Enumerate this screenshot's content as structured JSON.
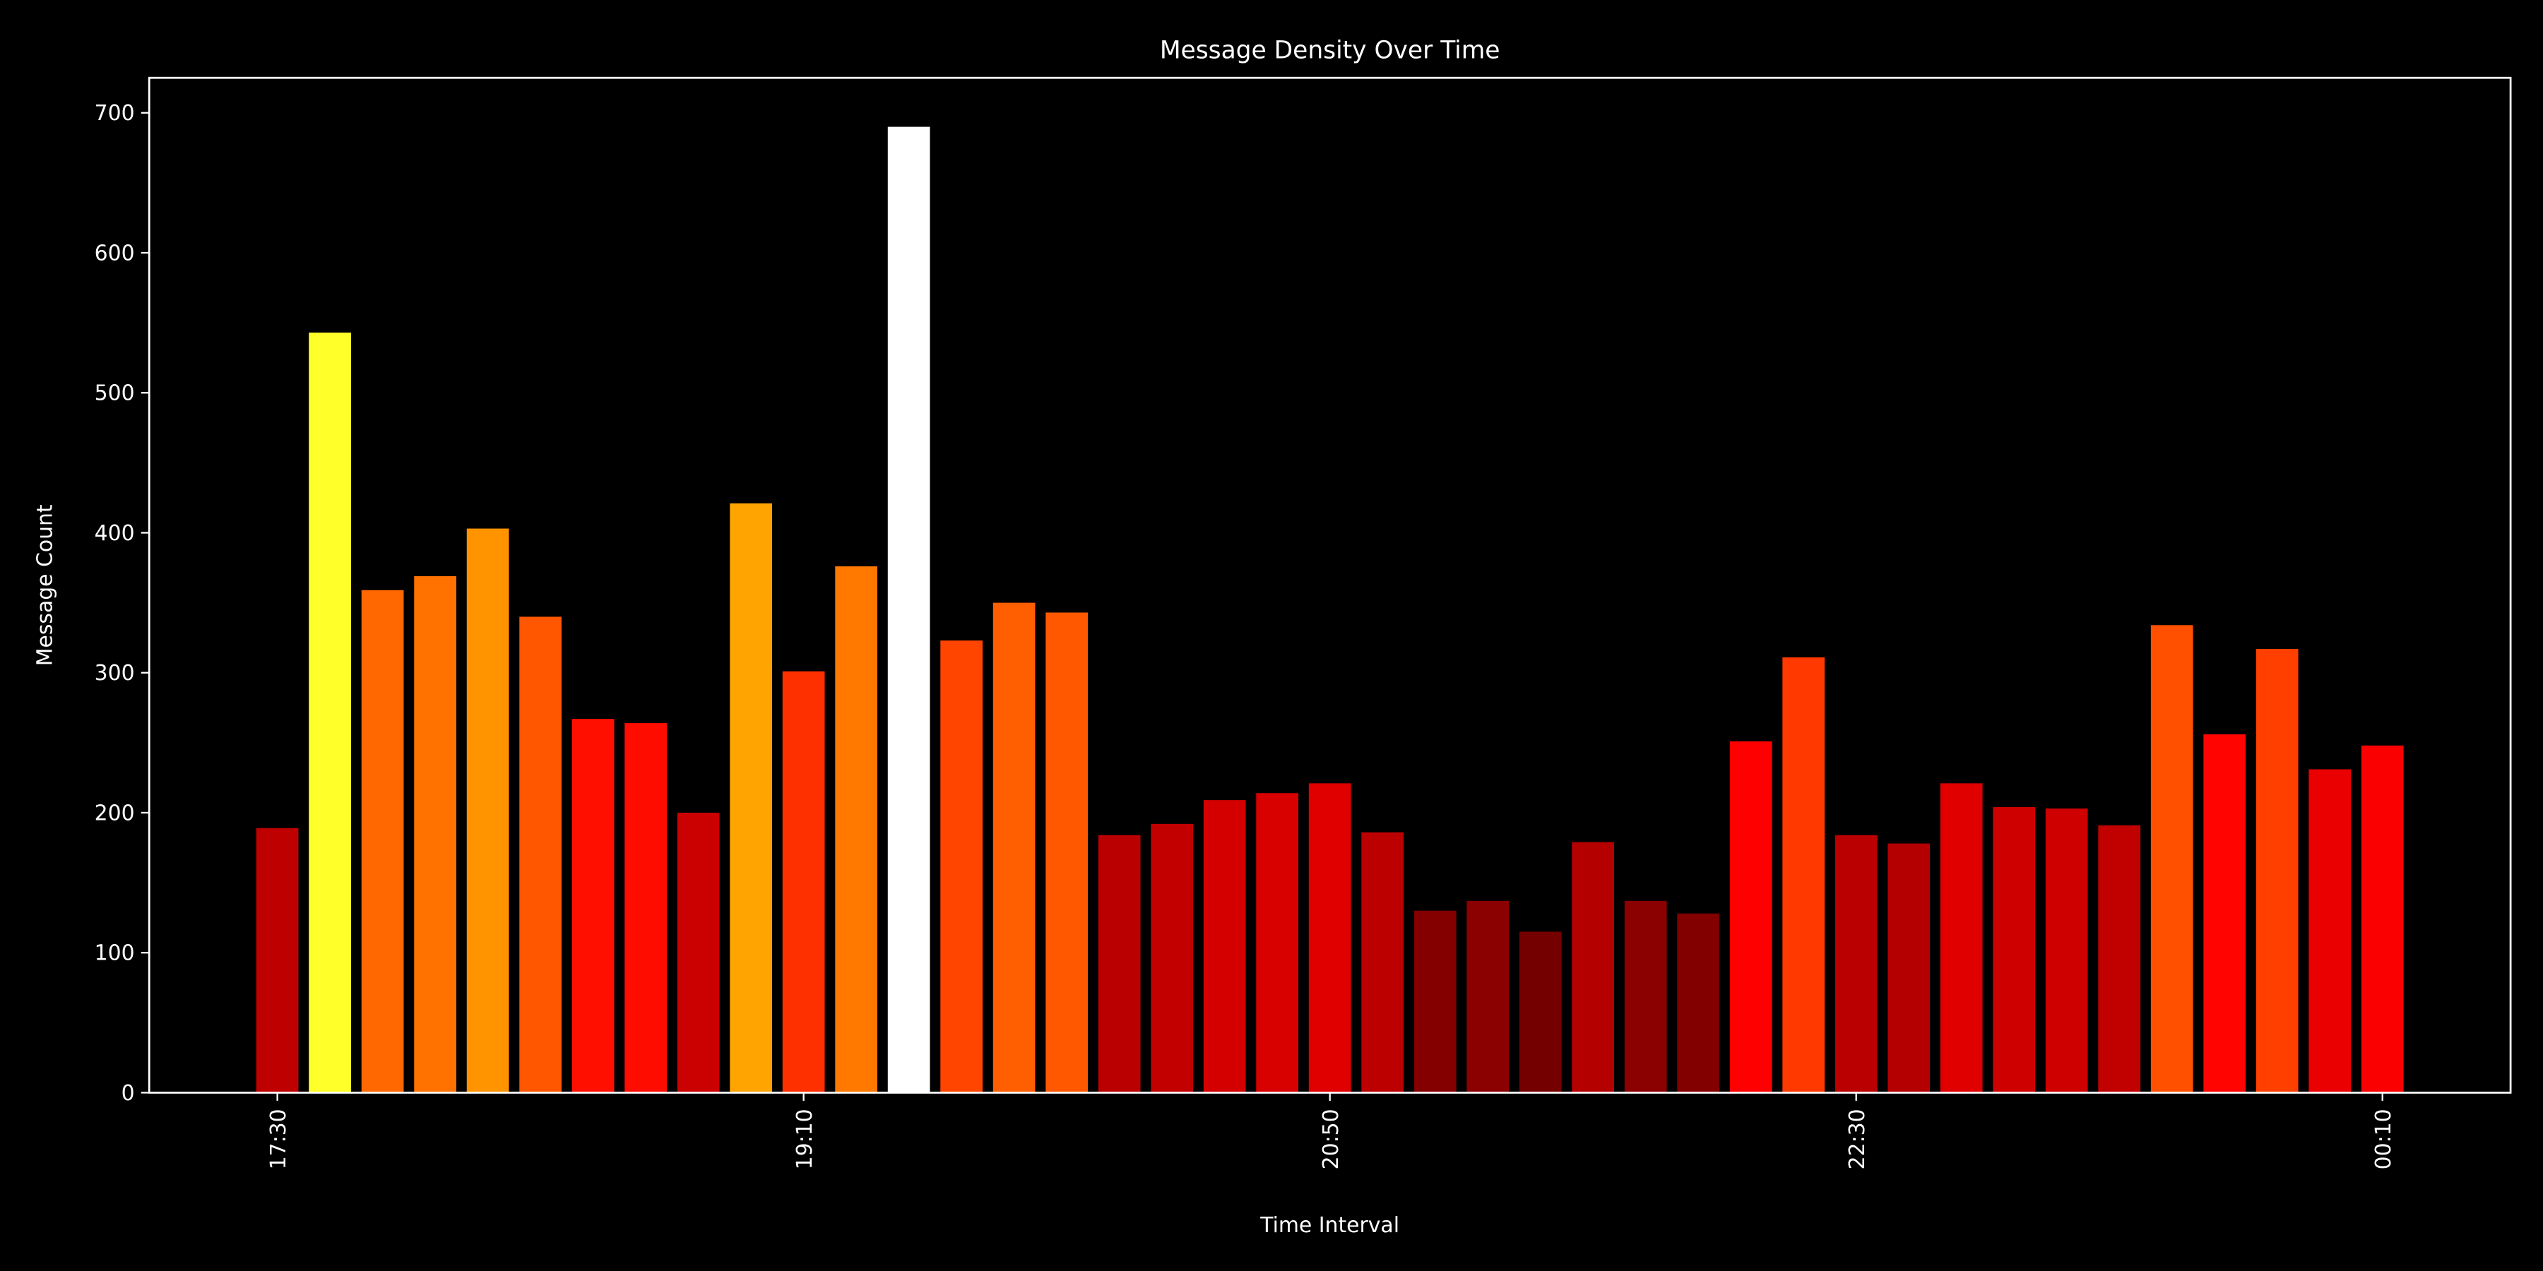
{
  "chart_data": {
    "type": "bar",
    "title": "Message Density Over Time",
    "x_label": "Time Interval",
    "y_label": "Message Count",
    "categories": [
      "17:30",
      null,
      null,
      null,
      null,
      null,
      null,
      null,
      null,
      null,
      "19:10",
      null,
      null,
      null,
      null,
      null,
      null,
      null,
      null,
      null,
      "20:50",
      null,
      null,
      null,
      null,
      null,
      null,
      null,
      null,
      null,
      "22:30",
      null,
      null,
      null,
      null,
      null,
      null,
      null,
      null,
      null,
      "00:10"
    ],
    "values": [
      189,
      543,
      359,
      369,
      403,
      340,
      267,
      264,
      200,
      421,
      301,
      376,
      690,
      323,
      350,
      343,
      184,
      192,
      209,
      214,
      221,
      186,
      130,
      137,
      115,
      179,
      137,
      128,
      251,
      311,
      184,
      178,
      221,
      204,
      203,
      191,
      334,
      256,
      317,
      231,
      248
    ],
    "colormap": "hot",
    "ylim": [
      0,
      725
    ],
    "yticks": [
      0,
      100,
      200,
      300,
      400,
      500,
      600,
      700
    ],
    "grid": false
  }
}
